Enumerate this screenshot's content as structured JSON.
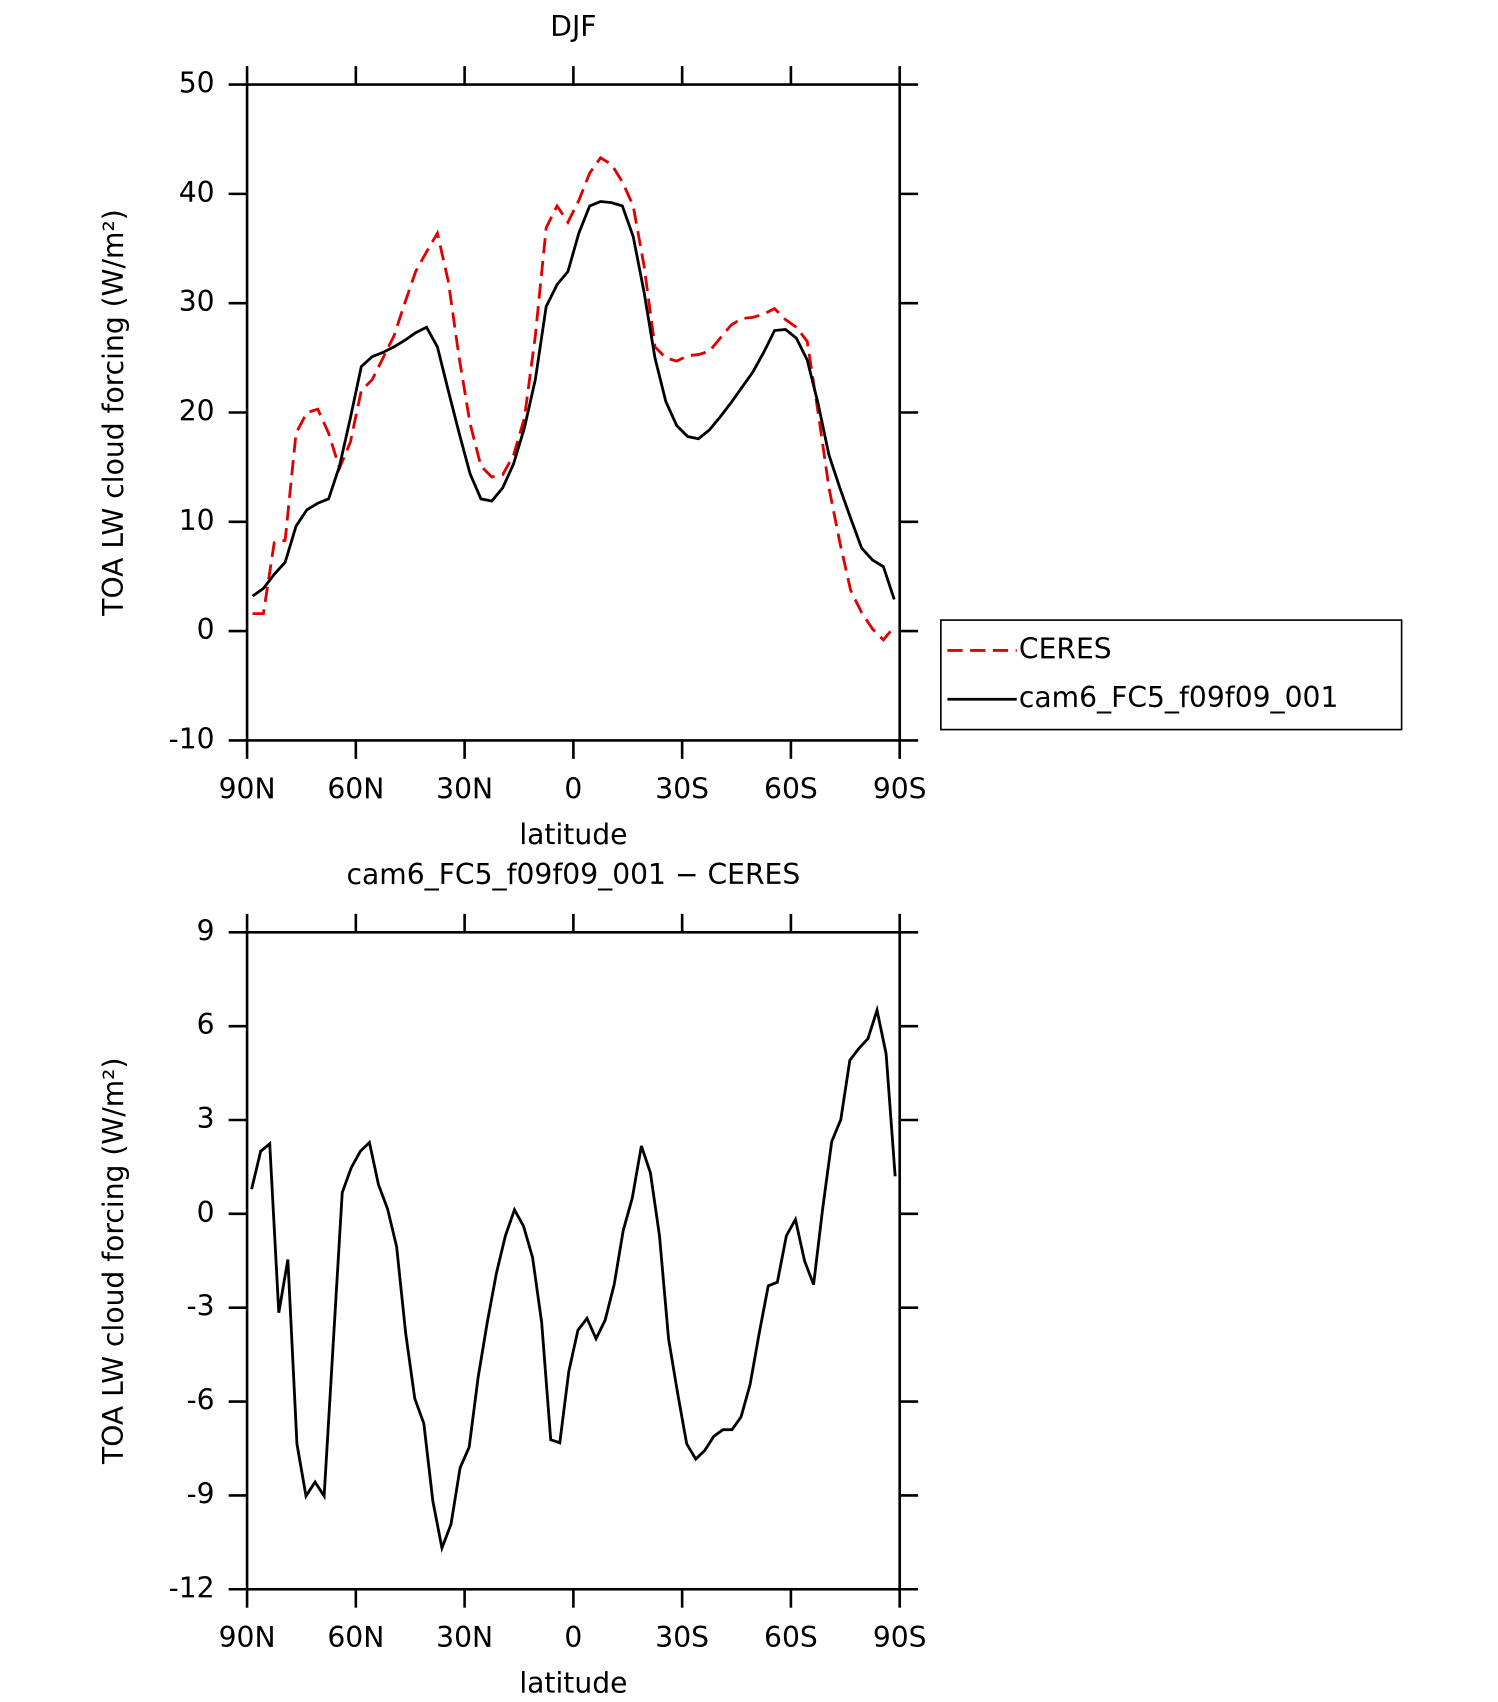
{
  "chart_data": [
    {
      "type": "line",
      "title": "DJF",
      "xlabel": "latitude",
      "ylabel": "TOA LW cloud forcing (W/m²)",
      "x": [
        88.5,
        85.5,
        82.5,
        79.5,
        76.5,
        73.5,
        70.5,
        67.5,
        64.5,
        61.5,
        58.5,
        55.5,
        52.5,
        49.5,
        46.5,
        43.5,
        40.5,
        37.5,
        34.5,
        31.5,
        28.5,
        25.5,
        22.5,
        19.5,
        16.5,
        13.5,
        10.5,
        7.5,
        4.5,
        1.5,
        -1.5,
        -4.5,
        -7.5,
        -10.5,
        -13.5,
        -16.5,
        -19.5,
        -22.5,
        -25.5,
        -28.5,
        -31.5,
        -34.5,
        -37.5,
        -40.5,
        -43.5,
        -46.5,
        -49.5,
        -52.5,
        -55.5,
        -58.5,
        -61.5,
        -64.5,
        -67.5,
        -70.5,
        -73.5,
        -76.5,
        -79.5,
        -82.5,
        -85.5,
        -88.5
      ],
      "xlim": [
        90,
        -90
      ],
      "xticks": [
        {
          "value": 90,
          "label": "90N"
        },
        {
          "value": 60,
          "label": "60N"
        },
        {
          "value": 30,
          "label": "30N"
        },
        0,
        {
          "value": -30,
          "label": "30S"
        },
        {
          "value": -60,
          "label": "60S"
        },
        {
          "value": -90,
          "label": "90S"
        }
      ],
      "ylim": [
        -10,
        50
      ],
      "yticks": [
        -10,
        0,
        10,
        20,
        30,
        40,
        50
      ],
      "legend": "right",
      "series": [
        {
          "name": "CERES",
          "color": "#e00000",
          "dash": "dashed",
          "values": [
            1.6,
            1.6,
            8.1,
            8.3,
            18.1,
            20.0,
            20.3,
            18.1,
            14.9,
            17.3,
            22.0,
            23.0,
            25.0,
            27.0,
            30.0,
            32.9,
            34.7,
            36.4,
            32.0,
            25.0,
            19.0,
            15.1,
            14.1,
            14.3,
            16.1,
            19.5,
            27.0,
            36.9,
            38.9,
            37.4,
            39.4,
            41.9,
            43.3,
            42.7,
            41.1,
            38.9,
            33.4,
            26.0,
            25.0,
            24.7,
            25.2,
            25.3,
            25.6,
            26.8,
            28.0,
            28.6,
            28.7,
            29.0,
            29.5,
            28.5,
            27.8,
            26.5,
            20.0,
            13.1,
            8.1,
            3.7,
            1.7,
            0.2,
            -0.8,
            0.4
          ]
        },
        {
          "name": "cam6_FC5_f09f09_001",
          "color": "#000000",
          "dash": "solid",
          "values": [
            3.2,
            3.9,
            5.2,
            6.3,
            9.6,
            11.1,
            11.7,
            12.1,
            15.1,
            19.5,
            24.2,
            25.1,
            25.5,
            26.0,
            26.6,
            27.3,
            27.8,
            26.0,
            22.0,
            18.1,
            14.4,
            12.1,
            11.9,
            13.1,
            15.3,
            18.6,
            23.0,
            29.7,
            31.7,
            32.9,
            36.4,
            38.9,
            39.3,
            39.2,
            38.9,
            36.1,
            31.0,
            25.0,
            21.0,
            18.8,
            17.8,
            17.6,
            18.4,
            19.6,
            20.9,
            22.3,
            23.7,
            25.5,
            27.5,
            27.6,
            26.8,
            24.8,
            20.8,
            16.1,
            13.1,
            10.3,
            7.6,
            6.5,
            5.9,
            2.9
          ]
        }
      ]
    },
    {
      "type": "line",
      "title": "cam6_FC5_f09f09_001 − CERES",
      "xlabel": "latitude",
      "ylabel": "TOA LW cloud forcing (W/m²)",
      "x": [
        88.75,
        86.25,
        83.75,
        81.25,
        78.75,
        76.25,
        73.75,
        71.25,
        68.75,
        66.25,
        63.75,
        61.25,
        58.75,
        56.25,
        53.75,
        51.25,
        48.75,
        46.25,
        43.75,
        41.25,
        38.75,
        36.25,
        33.75,
        31.25,
        28.75,
        26.25,
        23.75,
        21.25,
        18.75,
        16.25,
        13.75,
        11.25,
        8.75,
        6.25,
        3.75,
        1.25,
        -1.25,
        -3.75,
        -6.25,
        -8.75,
        -11.25,
        -13.75,
        -16.25,
        -18.75,
        -21.25,
        -23.75,
        -26.25,
        -28.75,
        -31.25,
        -33.75,
        -36.25,
        -38.75,
        -41.25,
        -43.75,
        -46.25,
        -48.75,
        -51.25,
        -53.75,
        -56.25,
        -58.75,
        -61.25,
        -63.75,
        -66.25,
        -68.75,
        -71.25,
        -73.75,
        -76.25,
        -78.75,
        -81.25,
        -83.75,
        -86.25,
        -88.75
      ],
      "xlim": [
        90,
        -90
      ],
      "xticks": [
        {
          "value": 90,
          "label": "90N"
        },
        {
          "value": 60,
          "label": "60N"
        },
        {
          "value": 30,
          "label": "30N"
        },
        0,
        {
          "value": -30,
          "label": "30S"
        },
        {
          "value": -60,
          "label": "60S"
        },
        {
          "value": -90,
          "label": "90S"
        }
      ],
      "ylim": [
        -12,
        9
      ],
      "yticks": [
        -12,
        -9,
        -6,
        -3,
        0,
        3,
        6,
        9
      ],
      "series": [
        {
          "color": "#000000",
          "dash": "solid",
          "values": [
            0.79,
            2.0,
            2.24,
            -3.16,
            -1.46,
            -7.35,
            -9.02,
            -8.57,
            -9.02,
            -4.17,
            0.68,
            1.48,
            2.0,
            2.28,
            0.93,
            0.16,
            -1.05,
            -3.82,
            -5.9,
            -6.7,
            -9.19,
            -10.68,
            -9.92,
            -8.12,
            -7.46,
            -5.21,
            -3.47,
            -1.91,
            -0.7,
            0.13,
            -0.39,
            -1.4,
            -3.47,
            -7.22,
            -7.32,
            -5.03,
            -3.72,
            -3.34,
            -3.99,
            -3.4,
            -2.26,
            -0.53,
            0.51,
            2.17,
            1.31,
            -0.7,
            -3.99,
            -5.73,
            -7.35,
            -7.84,
            -7.56,
            -7.11,
            -6.9,
            -6.9,
            -6.49,
            -5.45,
            -3.82,
            -2.3,
            -2.19,
            -0.7,
            -0.18,
            -1.5,
            -2.26,
            0.16,
            2.31,
            3.01,
            4.91,
            5.29,
            5.6,
            6.51,
            5.12,
            1.2
          ]
        }
      ]
    }
  ]
}
